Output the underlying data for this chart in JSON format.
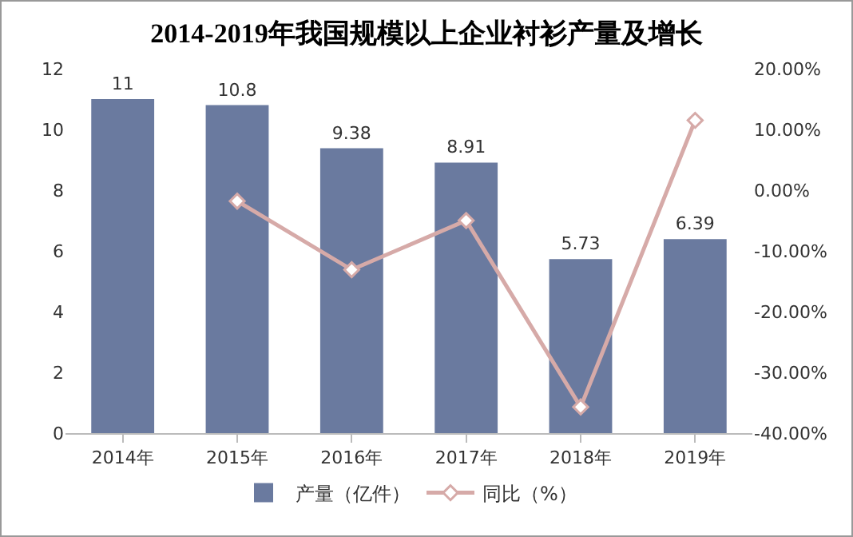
{
  "chart_data": {
    "type": "bar",
    "title": "2014-2019年我国规模以上企业衬衫产量及增长",
    "categories": [
      "2014年",
      "2015年",
      "2016年",
      "2017年",
      "2018年",
      "2019年"
    ],
    "series": [
      {
        "name": "产量（亿件）",
        "color": "#6a7a9f",
        "values": [
          11,
          10.8,
          9.38,
          8.91,
          5.73,
          6.39
        ],
        "value_labels": [
          "11",
          "10.8",
          "9.38",
          "8.91",
          "5.73",
          "6.39"
        ]
      },
      {
        "name": "同比（%）",
        "type": "line",
        "axis": "y2",
        "color": "#d6aaa8",
        "marker": "diamond",
        "values": [
          null,
          -1.8,
          -13.1,
          -5.0,
          -35.7,
          11.5
        ]
      }
    ],
    "ylim": [
      0,
      12
    ],
    "yticks": [
      0,
      2,
      4,
      6,
      8,
      10,
      12
    ],
    "y2lim": [
      -40,
      20
    ],
    "y2ticks": [
      {
        "value": -40,
        "label": "-40.00%"
      },
      {
        "value": -30,
        "label": "-30.00%"
      },
      {
        "value": -20,
        "label": "-20.00%"
      },
      {
        "value": -10,
        "label": "-10.00%"
      },
      {
        "value": 0,
        "label": "0.00%"
      },
      {
        "value": 10,
        "label": "10.00%"
      },
      {
        "value": 20,
        "label": "20.00%"
      }
    ],
    "grid": false,
    "legend": "bottom"
  }
}
